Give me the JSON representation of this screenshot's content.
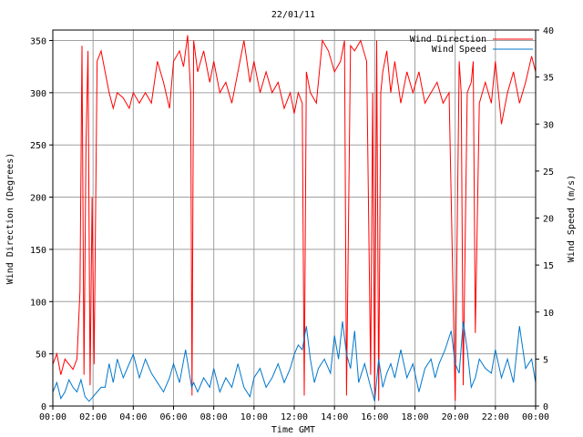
{
  "chart_data": {
    "type": "line",
    "title": "22/01/11",
    "xlabel": "Time GMT",
    "ylabel_left": "Wind Direction (Degrees)",
    "ylabel_right": "Wind Speed (m/s)",
    "x_tick_labels": [
      "00:00",
      "02:00",
      "04:00",
      "06:00",
      "08:00",
      "10:00",
      "12:00",
      "14:00",
      "16:00",
      "18:00",
      "20:00",
      "22:00",
      "00:00"
    ],
    "x_range_hours": [
      0,
      24
    ],
    "ylim_left": [
      0,
      360
    ],
    "y_ticks_left": [
      0,
      50,
      100,
      150,
      200,
      250,
      300,
      350
    ],
    "ylim_right": [
      0,
      40
    ],
    "y_ticks_right": [
      0,
      5,
      10,
      15,
      20,
      25,
      30,
      35,
      40
    ],
    "grid": true,
    "legend_position": "top-right",
    "series": [
      {
        "name": "Wind Direction",
        "axis": "left",
        "color": "#ff0000",
        "x": [
          0.0,
          0.2,
          0.4,
          0.6,
          0.8,
          1.0,
          1.2,
          1.35,
          1.45,
          1.55,
          1.65,
          1.75,
          1.85,
          1.95,
          2.05,
          2.2,
          2.4,
          2.6,
          2.8,
          3.0,
          3.2,
          3.5,
          3.8,
          4.0,
          4.3,
          4.6,
          4.9,
          5.2,
          5.5,
          5.8,
          6.0,
          6.3,
          6.5,
          6.7,
          6.85,
          6.92,
          7.0,
          7.2,
          7.5,
          7.8,
          8.0,
          8.3,
          8.6,
          8.9,
          9.2,
          9.5,
          9.8,
          10.0,
          10.3,
          10.6,
          10.9,
          11.2,
          11.5,
          11.8,
          12.0,
          12.2,
          12.4,
          12.5,
          12.6,
          12.8,
          13.1,
          13.4,
          13.7,
          14.0,
          14.3,
          14.5,
          14.6,
          14.8,
          15.0,
          15.3,
          15.6,
          15.8,
          15.9,
          16.0,
          16.1,
          16.2,
          16.3,
          16.4,
          16.6,
          16.8,
          17.0,
          17.3,
          17.6,
          17.9,
          18.2,
          18.5,
          18.8,
          19.1,
          19.4,
          19.7,
          20.0,
          20.2,
          20.3,
          20.4,
          20.6,
          20.8,
          20.9,
          21.0,
          21.2,
          21.5,
          21.8,
          22.0,
          22.3,
          22.6,
          22.9,
          23.2,
          23.5,
          23.8,
          24.0
        ],
        "values": [
          40,
          50,
          30,
          45,
          40,
          35,
          45,
          110,
          345,
          30,
          250,
          340,
          20,
          200,
          40,
          330,
          340,
          320,
          300,
          285,
          300,
          295,
          285,
          300,
          290,
          300,
          290,
          330,
          310,
          285,
          330,
          340,
          325,
          355,
          300,
          10,
          350,
          320,
          340,
          310,
          330,
          300,
          310,
          290,
          320,
          350,
          310,
          330,
          300,
          320,
          300,
          310,
          285,
          300,
          280,
          300,
          290,
          10,
          320,
          300,
          290,
          350,
          340,
          320,
          330,
          350,
          10,
          345,
          340,
          350,
          330,
          30,
          300,
          5,
          350,
          5,
          300,
          320,
          340,
          300,
          330,
          290,
          320,
          300,
          320,
          290,
          300,
          310,
          290,
          300,
          5,
          330,
          300,
          20,
          300,
          310,
          330,
          70,
          290,
          310,
          290,
          330,
          270,
          300,
          320,
          290,
          310,
          335,
          320
        ]
      },
      {
        "name": "Wind Speed",
        "axis": "right",
        "color": "#0077cc",
        "x": [
          0.0,
          0.2,
          0.4,
          0.6,
          0.8,
          1.0,
          1.2,
          1.4,
          1.6,
          1.8,
          2.0,
          2.2,
          2.4,
          2.6,
          2.8,
          3.0,
          3.2,
          3.5,
          3.8,
          4.0,
          4.3,
          4.6,
          4.9,
          5.2,
          5.5,
          5.8,
          6.0,
          6.3,
          6.6,
          6.9,
          7.0,
          7.2,
          7.5,
          7.8,
          8.0,
          8.3,
          8.6,
          8.9,
          9.2,
          9.5,
          9.8,
          10.0,
          10.3,
          10.6,
          10.9,
          11.2,
          11.5,
          11.8,
          12.0,
          12.2,
          12.4,
          12.6,
          12.8,
          13.0,
          13.2,
          13.5,
          13.8,
          14.0,
          14.2,
          14.4,
          14.6,
          14.8,
          15.0,
          15.2,
          15.5,
          15.8,
          16.0,
          16.2,
          16.4,
          16.6,
          16.8,
          17.0,
          17.3,
          17.6,
          17.9,
          18.2,
          18.5,
          18.8,
          19.0,
          19.2,
          19.5,
          19.8,
          20.0,
          20.2,
          20.4,
          20.6,
          20.8,
          21.0,
          21.2,
          21.5,
          21.8,
          22.0,
          22.3,
          22.6,
          22.9,
          23.2,
          23.5,
          23.8,
          24.0
        ],
        "values": [
          1.5,
          2.5,
          0.8,
          1.5,
          2.8,
          2.0,
          1.5,
          2.8,
          1.0,
          0.5,
          1.0,
          1.5,
          2.0,
          2.0,
          4.5,
          2.5,
          5.0,
          3.0,
          4.5,
          5.5,
          3.0,
          5.0,
          3.5,
          2.5,
          1.5,
          3.0,
          4.5,
          2.5,
          6.0,
          2.0,
          2.5,
          1.5,
          3.0,
          2.0,
          4.0,
          1.5,
          3.0,
          2.0,
          4.5,
          2.0,
          1.0,
          3.0,
          4.0,
          2.0,
          3.0,
          4.5,
          2.5,
          4.0,
          5.5,
          6.5,
          6.0,
          8.5,
          5.0,
          2.5,
          4.0,
          5.0,
          3.5,
          7.5,
          5.0,
          9.0,
          5.5,
          4.0,
          8.0,
          2.5,
          4.5,
          2.0,
          0.5,
          5.0,
          2.0,
          3.5,
          4.5,
          3.0,
          6.0,
          3.0,
          4.5,
          1.5,
          4.0,
          5.0,
          3.0,
          4.5,
          6.0,
          8.0,
          4.5,
          3.5,
          9.0,
          6.0,
          2.0,
          3.0,
          5.0,
          4.0,
          3.5,
          6.0,
          3.0,
          5.0,
          2.5,
          8.5,
          4.0,
          5.0,
          2.5
        ]
      }
    ]
  }
}
